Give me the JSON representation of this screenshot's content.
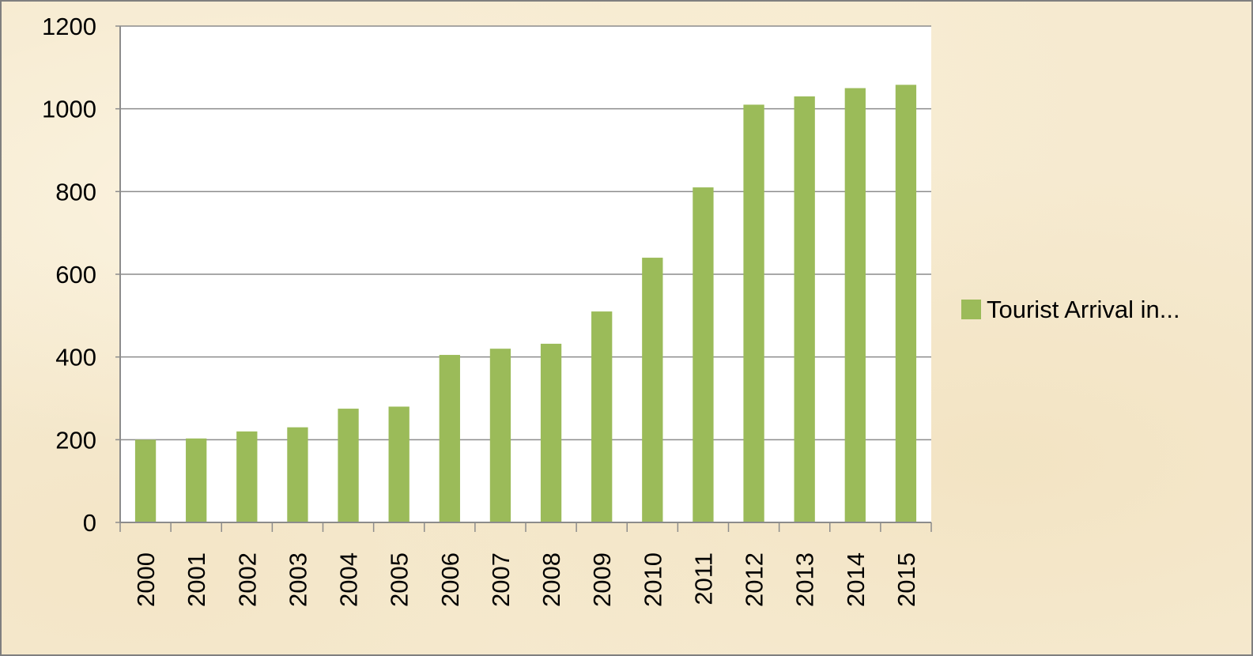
{
  "chart_data": {
    "type": "bar",
    "categories": [
      "2000",
      "2001",
      "2002",
      "2003",
      "2004",
      "2005",
      "2006",
      "2007",
      "2008",
      "2009",
      "2010",
      "2011",
      "2012",
      "2013",
      "2014",
      "2015"
    ],
    "series": [
      {
        "name": "Tourist Arrival in...",
        "values": [
          200,
          203,
          220,
          230,
          275,
          280,
          405,
          420,
          432,
          510,
          640,
          810,
          1010,
          1030,
          1050,
          1058
        ]
      }
    ],
    "ylim": [
      0,
      1200
    ],
    "yticks": [
      0,
      200,
      400,
      600,
      800,
      1000,
      1200
    ],
    "grid": true,
    "legend_position": "right",
    "title": "",
    "xlabel": "",
    "ylabel": ""
  },
  "colors": {
    "bar": "#9bbb59",
    "plot_background": "#ffffff",
    "gridline": "#8c8c8c",
    "axis": "#8c8c8c",
    "page_background": "#f6ead0"
  }
}
